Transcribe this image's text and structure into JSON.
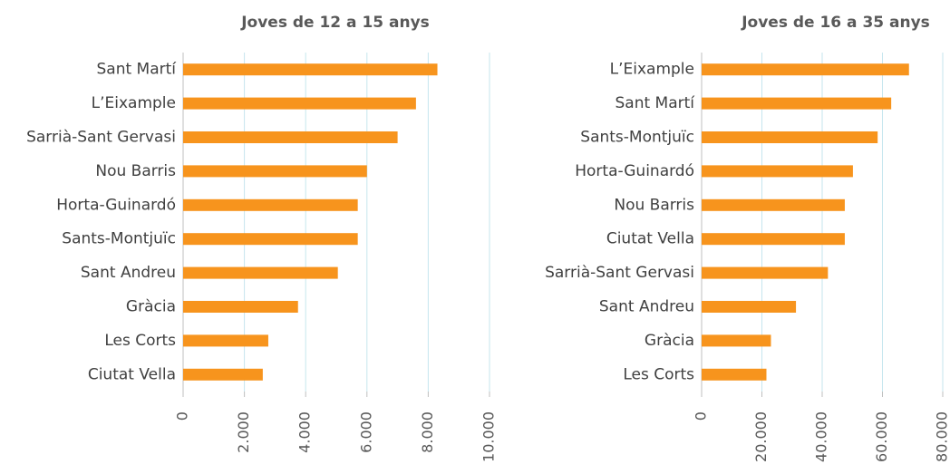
{
  "chart_data": [
    {
      "type": "bar",
      "orientation": "horizontal",
      "title": "Joves de 12 a 15 anys",
      "categories": [
        "Sant Martí",
        "L’Eixample",
        "Sarrià-Sant Gervasi",
        "Nou Barris",
        "Horta-Guinardó",
        "Sants-Montjuïc",
        "Sant Andreu",
        "Gràcia",
        "Les Corts",
        "Ciutat Vella"
      ],
      "values": [
        8300,
        7600,
        7000,
        6000,
        5700,
        5700,
        5050,
        3750,
        2780,
        2600
      ],
      "color": "#f7941d",
      "xlim": [
        0,
        10000
      ],
      "xticks": [
        0,
        {
          "value": 2000,
          "label": "2.000"
        },
        {
          "value": 4000,
          "label": "4.000"
        },
        {
          "value": 6000,
          "label": "6.000"
        },
        {
          "value": 8000,
          "label": "8.000"
        },
        {
          "value": 10000,
          "label": "10.000"
        }
      ],
      "grid": true
    },
    {
      "type": "bar",
      "orientation": "horizontal",
      "title": "Joves de 16 a 35 anys",
      "categories": [
        "L’Eixample",
        "Sant Martí",
        "Sants-Montjuïc",
        "Horta-Guinardó",
        "Nou Barris",
        "Ciutat Vella",
        "Sarrià-Sant Gervasi",
        "Sant Andreu",
        "Gràcia",
        "Les Corts"
      ],
      "values": [
        68800,
        62900,
        58400,
        50200,
        47500,
        47500,
        41900,
        31300,
        23000,
        21500
      ],
      "color": "#f7941d",
      "xlim": [
        0,
        80000
      ],
      "xticks": [
        0,
        {
          "value": 20000,
          "label": "20.000"
        },
        {
          "value": 40000,
          "label": "40.000"
        },
        {
          "value": 60000,
          "label": "60.000"
        },
        {
          "value": 80000,
          "label": "80.000"
        }
      ],
      "grid": true
    }
  ]
}
